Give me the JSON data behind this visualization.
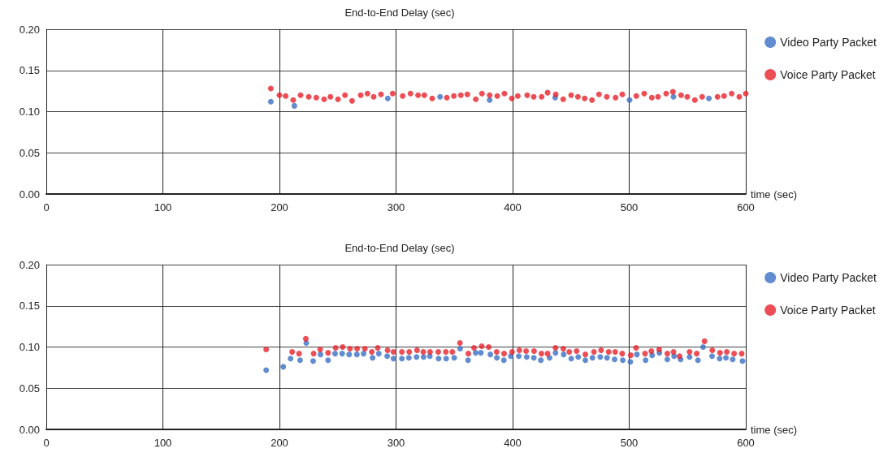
{
  "chart_data": [
    {
      "type": "scatter",
      "title": "End-to-End Delay (sec)",
      "xlabel": "time (sec)",
      "xlim": [
        0,
        600
      ],
      "xticks": [
        0,
        100,
        200,
        300,
        400,
        500,
        600
      ],
      "ylim": [
        0,
        0.2
      ],
      "yticks": [
        {
          "value": 0,
          "label": "0.00"
        },
        {
          "value": 0.05,
          "label": "0.05"
        },
        {
          "value": 0.1,
          "label": "0.10"
        },
        {
          "value": 0.15,
          "label": "0.15"
        },
        {
          "value": 0.2,
          "label": "0.20"
        }
      ],
      "grid": true,
      "legend": "top right",
      "marker": "circle",
      "series": [
        {
          "name": "Video Party Packet",
          "color": "#3a6fc4",
          "x": [
            192.6,
            212.8,
            292.9,
            337.8,
            380.3,
            436.5,
            500.3,
            538,
            568.4
          ],
          "values": [
            0.112,
            0.107,
            0.116,
            0.118,
            0.114,
            0.117,
            0.114,
            0.118,
            0.116
          ]
        },
        {
          "name": "Voice Party Packet",
          "color": "#e8202a",
          "x": [
            192.6,
            200,
            205.3,
            211.8,
            218.1,
            225.1,
            231.6,
            238.3,
            243.7,
            250.2,
            256.2,
            262.3,
            269.7,
            275.5,
            280.8,
            287.1,
            297.1,
            305.7,
            312.4,
            318.9,
            324.3,
            331,
            343.6,
            349.6,
            355.6,
            361.2,
            368.4,
            373.7,
            380.3,
            386.8,
            393,
            399.3,
            404.4,
            412.5,
            418.1,
            424.9,
            430,
            437,
            443.4,
            450.2,
            456,
            461.8,
            468.1,
            474.1,
            480.8,
            488.3,
            494.1,
            506.1,
            512.9,
            519.4,
            524.7,
            531.7,
            537.5,
            544.5,
            549.8,
            556.3,
            562.6,
            575.8,
            581.4,
            587.9,
            594.4,
            600
          ],
          "values": [
            0.128,
            0.12,
            0.119,
            0.114,
            0.12,
            0.118,
            0.117,
            0.115,
            0.118,
            0.115,
            0.12,
            0.113,
            0.12,
            0.122,
            0.118,
            0.121,
            0.122,
            0.119,
            0.122,
            0.12,
            0.12,
            0.116,
            0.117,
            0.119,
            0.12,
            0.121,
            0.115,
            0.122,
            0.12,
            0.119,
            0.122,
            0.116,
            0.119,
            0.12,
            0.118,
            0.118,
            0.123,
            0.121,
            0.115,
            0.12,
            0.118,
            0.116,
            0.114,
            0.121,
            0.118,
            0.117,
            0.121,
            0.119,
            0.122,
            0.117,
            0.118,
            0.122,
            0.124,
            0.12,
            0.118,
            0.114,
            0.118,
            0.118,
            0.119,
            0.122,
            0.118,
            0.122
          ]
        }
      ]
    },
    {
      "type": "scatter",
      "title": "End-to-End Delay (sec)",
      "xlabel": "time (sec)",
      "xlim": [
        0,
        600
      ],
      "xticks": [
        0,
        100,
        200,
        300,
        400,
        500,
        600
      ],
      "ylim": [
        0,
        0.2
      ],
      "yticks": [
        {
          "value": 0,
          "label": "0.00"
        },
        {
          "value": 0.05,
          "label": "0.05"
        },
        {
          "value": 0.1,
          "label": "0.10"
        },
        {
          "value": 0.15,
          "label": "0.15"
        },
        {
          "value": 0.2,
          "label": "0.20"
        }
      ],
      "grid": true,
      "legend": "top right",
      "marker": "circle",
      "series": [
        {
          "name": "Video Party Packet",
          "color": "#3a6fc4",
          "x": [
            188.6,
            203.3,
            209.5,
            217.7,
            223,
            228.9,
            235.2,
            241.7,
            247.7,
            253.8,
            259.8,
            266.4,
            272.2,
            279.9,
            285.2,
            292.4,
            297.8,
            305,
            311,
            317.6,
            323.6,
            329,
            336.5,
            343,
            349.9,
            355,
            361.8,
            368.3,
            372.8,
            380.9,
            386.5,
            392.5,
            398.4,
            405.3,
            412.1,
            418.2,
            424.2,
            431.7,
            436.8,
            443.8,
            450.3,
            456.3,
            462.4,
            468.5,
            475.2,
            481,
            487.5,
            494.5,
            501,
            506.6,
            514.1,
            519.7,
            525.9,
            532.7,
            538.5,
            544.1,
            551.8,
            559,
            563.4,
            571.1,
            577.6,
            583,
            588.8,
            597.2
          ],
          "values": [
            0.072,
            0.076,
            0.086,
            0.084,
            0.105,
            0.083,
            0.091,
            0.084,
            0.092,
            0.092,
            0.091,
            0.091,
            0.092,
            0.087,
            0.092,
            0.089,
            0.086,
            0.086,
            0.087,
            0.088,
            0.088,
            0.089,
            0.086,
            0.086,
            0.087,
            0.098,
            0.084,
            0.093,
            0.093,
            0.091,
            0.087,
            0.084,
            0.089,
            0.089,
            0.088,
            0.087,
            0.084,
            0.087,
            0.093,
            0.091,
            0.086,
            0.088,
            0.084,
            0.087,
            0.088,
            0.087,
            0.085,
            0.084,
            0.082,
            0.091,
            0.084,
            0.09,
            0.093,
            0.085,
            0.089,
            0.085,
            0.088,
            0.084,
            0.1,
            0.089,
            0.086,
            0.087,
            0.085,
            0.083
          ]
        },
        {
          "name": "Voice Party Packet",
          "color": "#e8202a",
          "x": [
            188.6,
            210.9,
            216.8,
            222.6,
            229.3,
            234.9,
            241.7,
            248.2,
            254.2,
            260.5,
            266.6,
            273.3,
            279.2,
            284.3,
            292.7,
            297.8,
            305,
            311.3,
            318,
            323.4,
            329.2,
            336.2,
            342.7,
            348.3,
            354.8,
            362,
            366.9,
            373.5,
            379.5,
            386.3,
            392.7,
            399.5,
            405.8,
            411.6,
            418.4,
            424.7,
            430,
            436.8,
            443.5,
            448.6,
            454.9,
            462.4,
            469.8,
            475.9,
            482.4,
            488,
            494,
            501.3,
            505.9,
            513.6,
            519,
            525.7,
            532.7,
            538,
            543.2,
            551.8,
            557.9,
            564.6,
            571.3,
            577.9,
            583.7,
            590,
            596.5
          ],
          "values": [
            0.097,
            0.094,
            0.092,
            0.11,
            0.092,
            0.097,
            0.093,
            0.099,
            0.1,
            0.098,
            0.098,
            0.098,
            0.094,
            0.099,
            0.096,
            0.094,
            0.094,
            0.094,
            0.096,
            0.094,
            0.094,
            0.094,
            0.094,
            0.094,
            0.105,
            0.092,
            0.099,
            0.101,
            0.1,
            0.094,
            0.092,
            0.094,
            0.096,
            0.095,
            0.095,
            0.092,
            0.092,
            0.099,
            0.098,
            0.094,
            0.095,
            0.091,
            0.094,
            0.096,
            0.094,
            0.094,
            0.092,
            0.09,
            0.099,
            0.092,
            0.095,
            0.097,
            0.092,
            0.094,
            0.089,
            0.094,
            0.092,
            0.107,
            0.096,
            0.093,
            0.094,
            0.092,
            0.092
          ]
        }
      ]
    }
  ]
}
